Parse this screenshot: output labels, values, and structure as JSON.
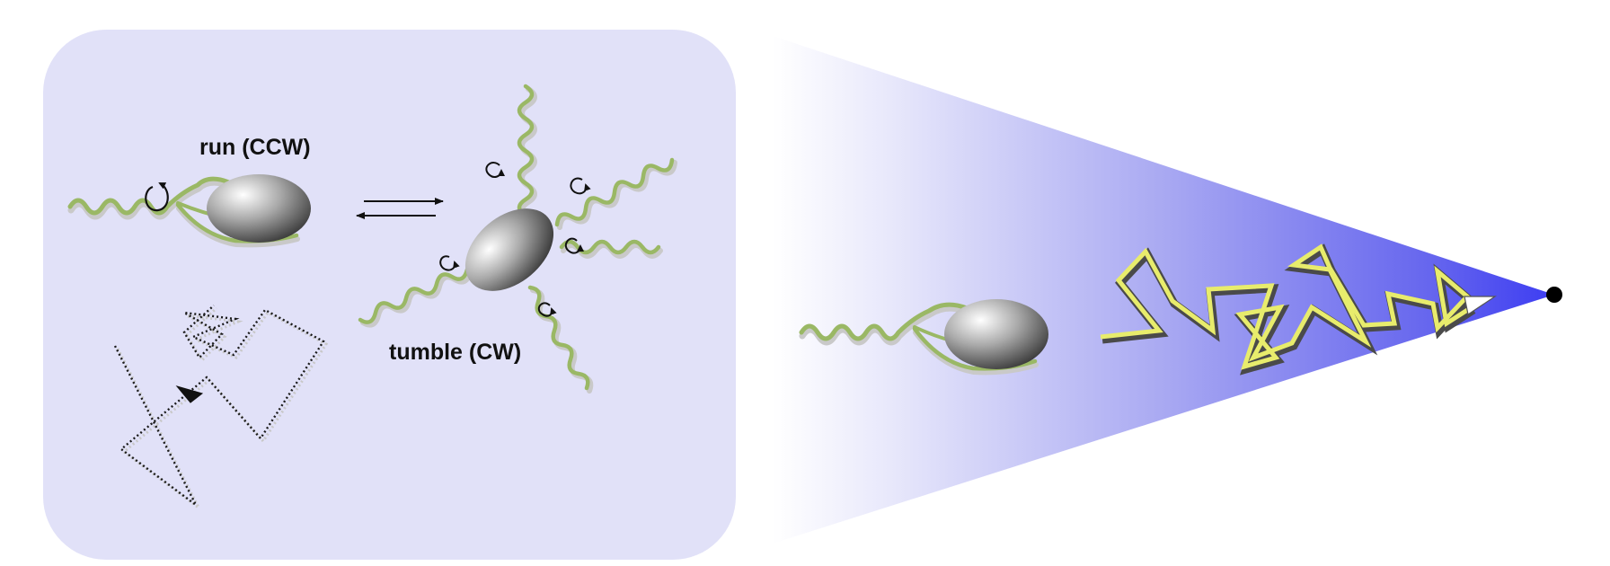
{
  "labels": {
    "run": "run (CCW)",
    "tumble": "tumble (CW)"
  },
  "colors": {
    "panel_fill": "#e1e1f8",
    "cone_tip": "#3d3df2",
    "flagellum_green": "#9ab865",
    "path_yellow": "#e8ec6c",
    "cell_gray": "#808080",
    "endpoint_dot": "#000000"
  },
  "icons": {
    "rotation_arrows": "curved-rotation-arrow",
    "equilibrium": "reversible-arrows",
    "trajectory_head": "arrowhead"
  }
}
